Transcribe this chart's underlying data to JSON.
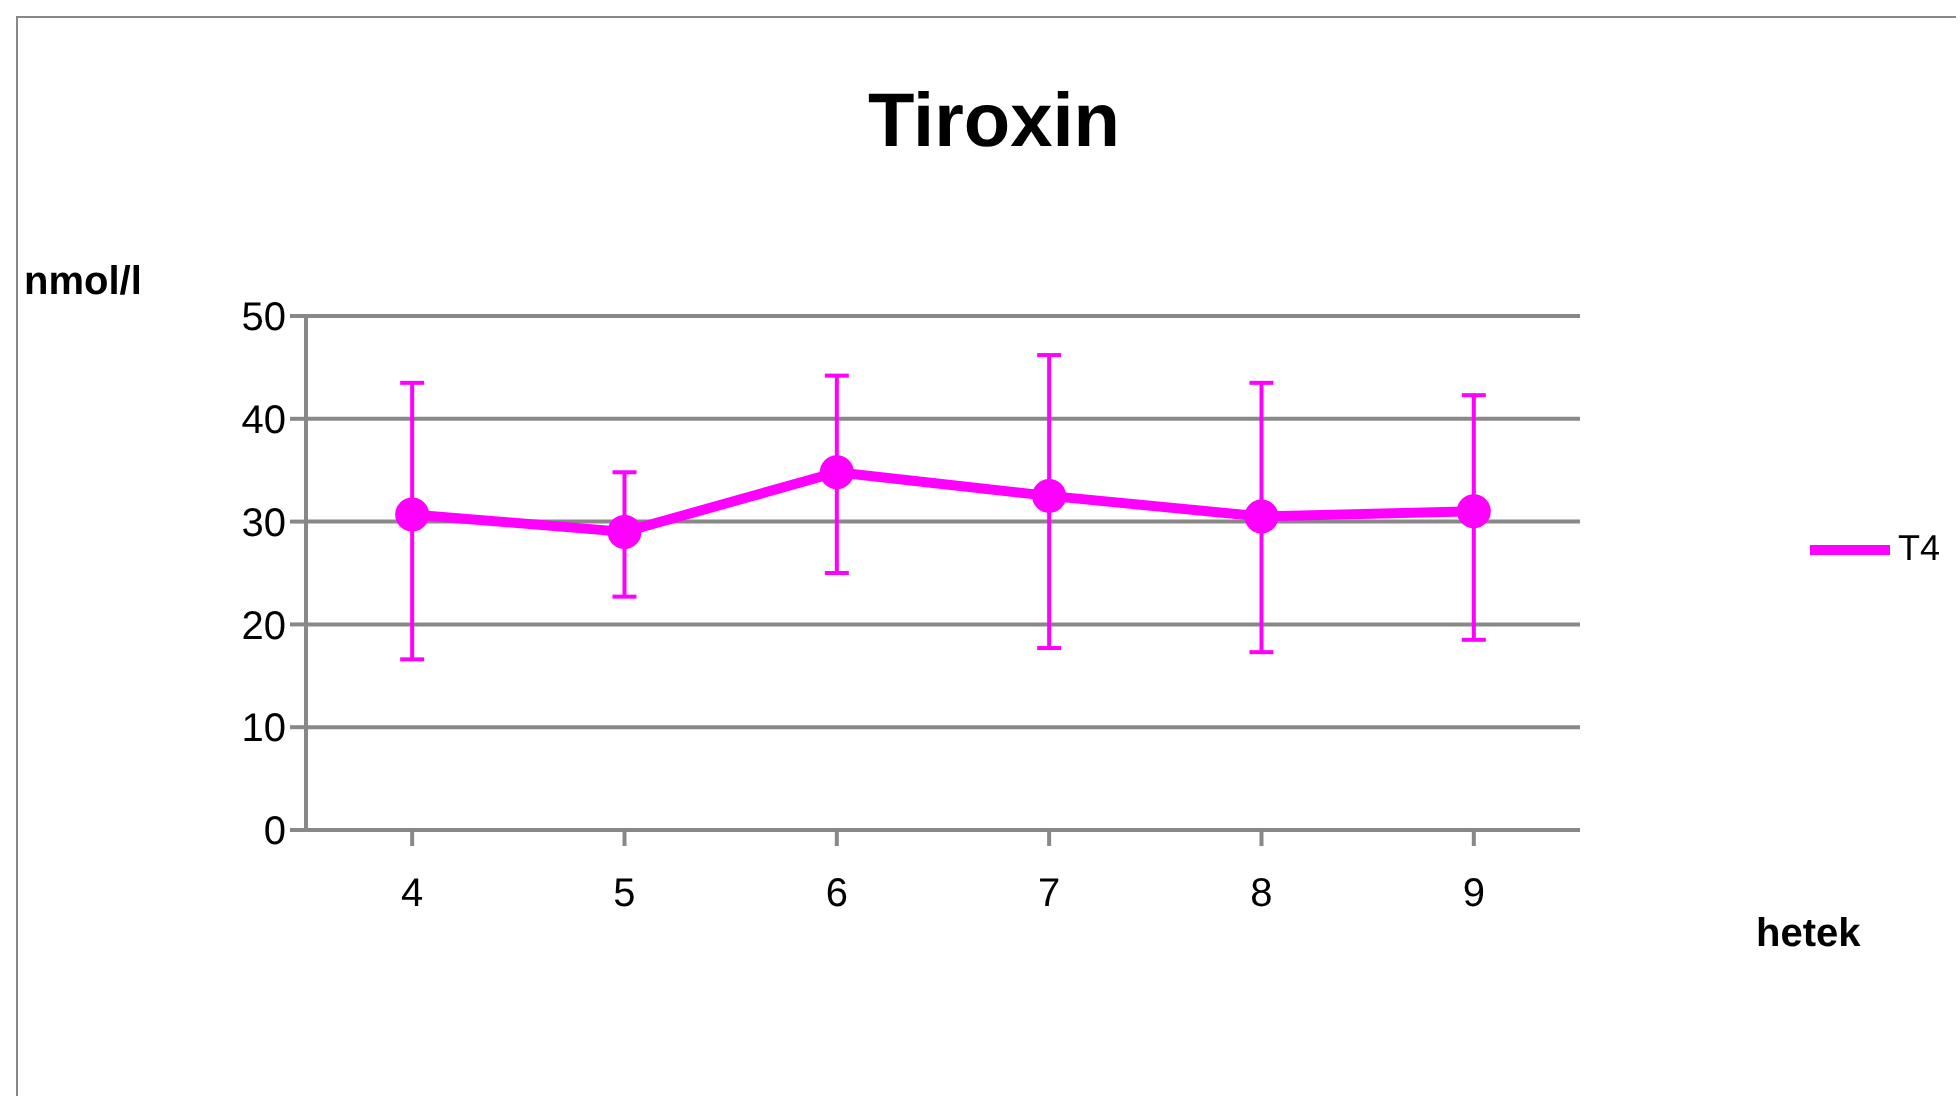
{
  "chart_data": {
    "type": "line",
    "title": "Tiroxin",
    "xlabel": "hetek",
    "ylabel": "nmol/l",
    "categories": [
      "4",
      "5",
      "6",
      "7",
      "8",
      "9"
    ],
    "series": [
      {
        "name": "T4",
        "color": "#ff00ff",
        "values": [
          30.7,
          29.0,
          34.8,
          32.5,
          30.5,
          31.0
        ],
        "errors": [
          [
            16.6,
            43.5
          ],
          [
            22.7,
            34.8
          ],
          [
            25.0,
            44.2
          ],
          [
            17.7,
            46.2
          ],
          [
            17.3,
            43.5
          ],
          [
            18.5,
            42.3
          ]
        ]
      }
    ],
    "ylim": [
      0,
      50
    ],
    "yticks": [
      0,
      10,
      20,
      30,
      40,
      50
    ],
    "grid": "y",
    "legend": "right",
    "marker": "circle",
    "line_style": "solid"
  }
}
